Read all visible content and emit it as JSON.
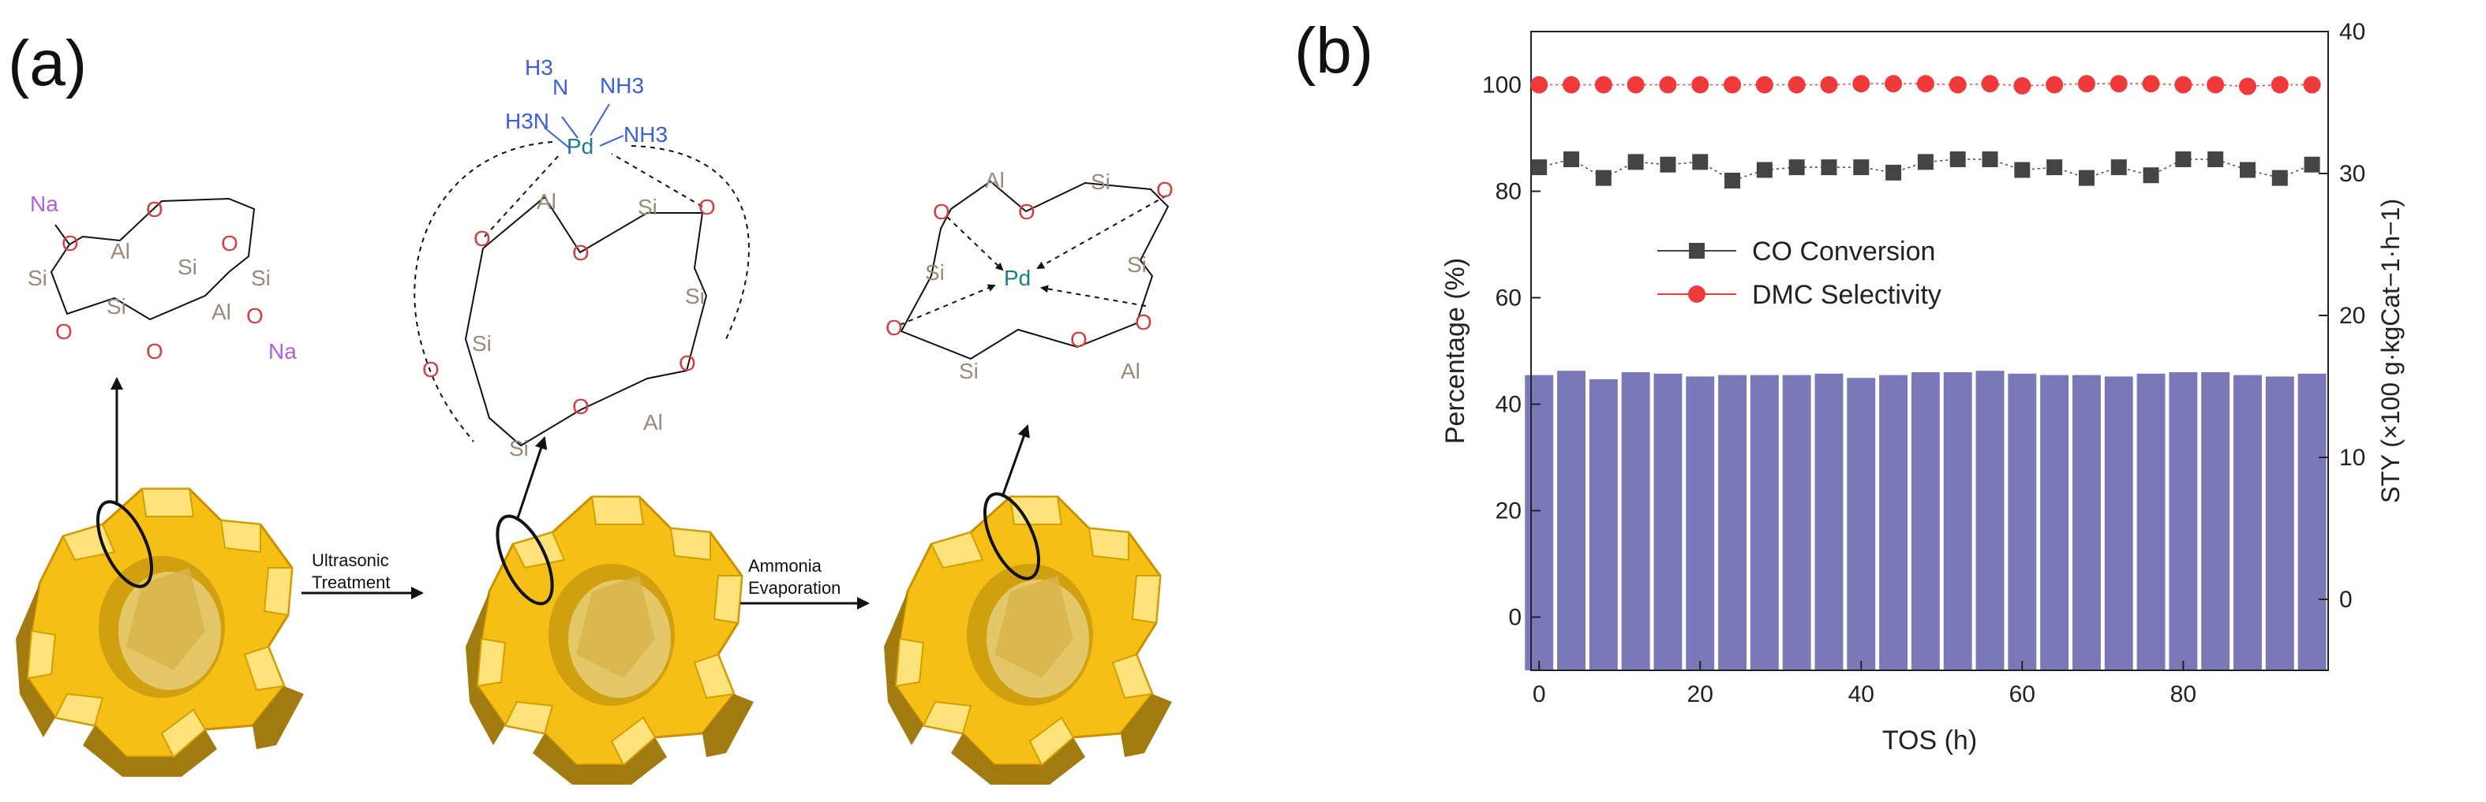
{
  "panels": {
    "a": {
      "label": "(a)",
      "step1_label": [
        "Ultrasonic",
        "Treatment"
      ],
      "step2_label": [
        "Ammonia",
        "Evaporation"
      ],
      "atoms": {
        "si": "Si",
        "al": "Al",
        "o": "O",
        "na": "Na",
        "pd": "Pd",
        "h3n": "H3N",
        "nh3": "NH3",
        "h3": "H3",
        "n": "N"
      },
      "zeolite_color": "#f2b200"
    },
    "b": {
      "label": "(b)"
    }
  },
  "chart_data": {
    "type": "bar+scatter",
    "xlabel": "TOS (h)",
    "ylabel": "Percentage (%)",
    "y2label": "STY (×100 g·kgCat−1·h−1)",
    "xlim": [
      -1,
      98
    ],
    "ylim": [
      -10,
      110
    ],
    "y2lim": [
      -5,
      40
    ],
    "xticks": [
      0,
      20,
      40,
      60,
      80
    ],
    "yticks": [
      0,
      20,
      40,
      60,
      80,
      100
    ],
    "y2ticks": [
      0,
      10,
      20,
      30,
      40
    ],
    "legend": {
      "placement": "center-left",
      "entries": [
        "CO Conversion",
        "DMC Selectivity"
      ]
    },
    "series": [
      {
        "name": "CO Conversion",
        "color": "#444444",
        "marker": "square",
        "x": [
          0,
          4,
          8,
          12,
          16,
          20,
          24,
          28,
          32,
          36,
          40,
          44,
          48,
          52,
          56,
          60,
          64,
          68,
          72,
          76,
          80,
          84,
          88,
          92,
          96
        ],
        "y": [
          84.5,
          86,
          82.5,
          85.5,
          85,
          85.5,
          82,
          84,
          84.5,
          84.5,
          84.5,
          83.5,
          85.5,
          86,
          86,
          84,
          84.5,
          82.5,
          84.5,
          83,
          86,
          86,
          84,
          82.5,
          85
        ]
      },
      {
        "name": "DMC Selectivity",
        "color": "#f03a3a",
        "marker": "circle",
        "x": [
          0,
          4,
          8,
          12,
          16,
          20,
          24,
          28,
          32,
          36,
          40,
          44,
          48,
          52,
          56,
          60,
          64,
          68,
          72,
          76,
          80,
          84,
          88,
          92,
          96
        ],
        "y": [
          100,
          100,
          100,
          100,
          100,
          100,
          100,
          100,
          100,
          100,
          100.2,
          100.2,
          100.2,
          100,
          100.2,
          99.8,
          100,
          100.2,
          100.2,
          100.2,
          100,
          100,
          99.7,
          100,
          100
        ]
      },
      {
        "name": "STY",
        "axis": "y2",
        "color": "#7b78b8",
        "type": "bar",
        "x": [
          0,
          4,
          8,
          12,
          16,
          20,
          24,
          28,
          32,
          36,
          40,
          44,
          48,
          52,
          56,
          60,
          64,
          68,
          72,
          76,
          80,
          84,
          88,
          92,
          96
        ],
        "y": [
          15.8,
          16.1,
          15.5,
          16.0,
          15.9,
          15.7,
          15.8,
          15.8,
          15.8,
          15.9,
          15.6,
          15.8,
          16.0,
          16.0,
          16.1,
          15.9,
          15.8,
          15.8,
          15.7,
          15.9,
          16.0,
          16.0,
          15.8,
          15.7,
          15.9
        ]
      }
    ]
  }
}
